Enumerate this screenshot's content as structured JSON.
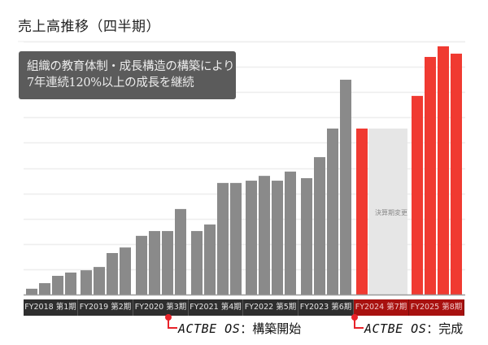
{
  "page": {
    "title": "売上高推移（四半期）",
    "note_lines": [
      "組織の教育体制・成長構造の構築により",
      "7年連続120%以上の成長を継続"
    ],
    "placeholder_label": "決算期変更",
    "annotations": [
      {
        "os": "ACTBE OS",
        "text": "：構築開始"
      },
      {
        "os": "ACTBE OS",
        "text": "：完成"
      }
    ],
    "colors": {
      "gray_bar": "#8a8a8a",
      "red_bar": "#f03a31",
      "placeholder_bar": "#e6e6e6",
      "grid": "#eeeeee"
    }
  },
  "chart_data": {
    "type": "bar",
    "title": "売上高推移（四半期）",
    "xlabel": "",
    "ylabel": "",
    "ylim": [
      0,
      10
    ],
    "grid": true,
    "y_ticks_labeled": false,
    "groups": [
      {
        "label": "FY2018 第1期",
        "color": "gray",
        "values": [
          0.23,
          0.45,
          0.74,
          0.87
        ]
      },
      {
        "label": "FY2019 第2期",
        "color": "gray",
        "values": [
          0.96,
          1.09,
          1.64,
          1.86
        ]
      },
      {
        "label": "FY2020 第3期",
        "color": "gray",
        "values": [
          2.32,
          2.51,
          2.51,
          3.38
        ]
      },
      {
        "label": "FY2021 第4期",
        "color": "gray",
        "values": [
          2.51,
          2.77,
          4.41,
          4.41
        ]
      },
      {
        "label": "FY2022 第5期",
        "color": "gray",
        "values": [
          4.5,
          4.69,
          4.5,
          4.86
        ]
      },
      {
        "label": "FY2023 第6期",
        "color": "gray",
        "values": [
          4.6,
          5.43,
          6.56,
          8.49
        ]
      },
      {
        "label": "FY2024 第7期",
        "color": "red",
        "values": [
          6.56,
          null,
          null,
          null
        ],
        "placeholder": {
          "label": "決算期変更",
          "value": 6.56
        }
      },
      {
        "label": "FY2025 第8期",
        "color": "red",
        "values": [
          7.85,
          9.39,
          9.81,
          9.52
        ]
      }
    ],
    "annotations": [
      {
        "text": "ACTBE OS：構築開始",
        "at_group": "FY2020 第3期"
      },
      {
        "text": "ACTBE OS：完成",
        "at_group": "FY2024 第7期"
      },
      {
        "text": "組織の教育体制・成長構造の構築により7年連続120%以上の成長を継続",
        "type": "callout"
      }
    ]
  }
}
